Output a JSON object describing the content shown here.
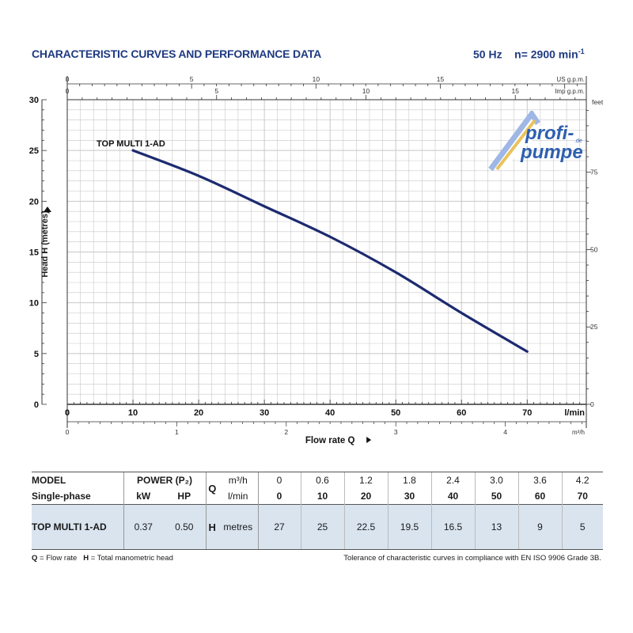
{
  "header": {
    "title": "CHARACTERISTIC CURVES AND PERFORMANCE DATA",
    "freq": "50 Hz",
    "speed_prefix": "n= 2900 min",
    "speed_exp": "-1"
  },
  "logo": {
    "line1": "profi-",
    "line2": "pumpe",
    "suffix": ".de"
  },
  "chart_data": {
    "type": "line",
    "series": [
      {
        "name": "TOP MULTI 1-AD",
        "x": [
          10,
          20,
          30,
          40,
          50,
          60,
          70
        ],
        "y": [
          25,
          22.5,
          19.5,
          16.5,
          13,
          9,
          5.2
        ]
      }
    ],
    "xlabel": "Flow rate Q",
    "ylabel": "Head H  (metres)",
    "xlim": [
      0,
      79
    ],
    "ylim": [
      0,
      30
    ],
    "grid": true,
    "x_lmin": {
      "ticks": [
        0,
        10,
        20,
        30,
        40,
        50,
        60,
        70
      ],
      "unit": "l/min"
    },
    "x_m3h": {
      "ticks": [
        0,
        1,
        2,
        3,
        4
      ],
      "unit": "m³/h"
    },
    "x_usgpm": {
      "ticks": [
        0,
        5,
        10,
        15
      ],
      "unit": "US g.p.m."
    },
    "x_impgpm": {
      "ticks": [
        0,
        5,
        10,
        15
      ],
      "unit": "Imp g.p.m."
    },
    "y_metres": {
      "ticks": [
        0,
        5,
        10,
        15,
        20,
        25,
        30
      ]
    },
    "y_feet": {
      "ticks": [
        0,
        25,
        50,
        75
      ],
      "unit": "feet"
    }
  },
  "table": {
    "model_header": "MODEL",
    "phase_header": "Single-phase",
    "power_header": "POWER (P₂)",
    "kw_header": "kW",
    "hp_header": "HP",
    "q_symbol": "Q",
    "h_symbol": "H",
    "m3h_unit": "m³/h",
    "lmin_unit": "l/min",
    "metres_unit": "metres",
    "m3h_values": [
      "0",
      "0.6",
      "1.2",
      "1.8",
      "2.4",
      "3.0",
      "3.6",
      "4.2"
    ],
    "lmin_values": [
      "0",
      "10",
      "20",
      "30",
      "40",
      "50",
      "60",
      "70"
    ],
    "rows": [
      {
        "model": "TOP MULTI 1-AD",
        "kw": "0.37",
        "hp": "0.50",
        "head": [
          "27",
          "25",
          "22.5",
          "19.5",
          "16.5",
          "13",
          "9",
          "5"
        ]
      }
    ]
  },
  "footer": {
    "q_key": "Q",
    "q_desc": " = Flow rate",
    "h_key": "H",
    "h_desc": " = Total manometric head",
    "tolerance": "Tolerance of characteristic curves in compliance with EN ISO 9906 Grade 3B."
  },
  "colors": {
    "curve": "#1c2a70",
    "title": "#1f3a82",
    "grid": "#c8c8c8",
    "row_bg": "#d9e4ef"
  }
}
